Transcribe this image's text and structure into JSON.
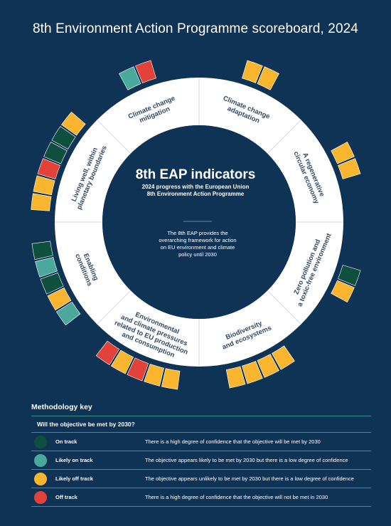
{
  "title": "8th Environment Action Programme scoreboard, 2024",
  "center": {
    "heading": "8th EAP indicators",
    "subheading_lines": [
      "2024 progress with the European Union",
      "8th Environment Action Programme"
    ],
    "description_lines": [
      "The 8th EAP provides the",
      "overarching framework for action",
      "on EU environment and climate",
      "policy until 2030"
    ]
  },
  "colors": {
    "on_track": "#0e4f3e",
    "likely_on_track": "#4aa89c",
    "likely_off_track": "#f9b52d",
    "off_track": "#e3423b",
    "background": "#0f3355",
    "ring": "#ffffff"
  },
  "segments": [
    {
      "key": "adaptation",
      "label_lines": [
        "Climate change",
        "adaptation"
      ],
      "statuses": [
        "likely_off_track",
        "likely_off_track"
      ]
    },
    {
      "key": "circular",
      "label_lines": [
        "A regenerative",
        "circular economy"
      ],
      "statuses": [
        "likely_off_track",
        "likely_off_track"
      ]
    },
    {
      "key": "pollution",
      "label_lines": [
        "Zero pollution and",
        "a toxic-free environment"
      ],
      "statuses": [
        "on_track",
        "likely_off_track"
      ]
    },
    {
      "key": "biodiversity",
      "label_lines": [
        "Biodiversity",
        "and ecosystems"
      ],
      "statuses": [
        "likely_off_track",
        "likely_off_track",
        "likely_off_track",
        "likely_off_track"
      ]
    },
    {
      "key": "pressures",
      "label_lines": [
        "Environmental",
        "and climate pressures",
        "related to EU production",
        "and consumption"
      ],
      "statuses": [
        "likely_off_track",
        "likely_off_track",
        "off_track",
        "likely_off_track",
        "off_track"
      ]
    },
    {
      "key": "enabling",
      "label_lines": [
        "Enabling",
        "conditions"
      ],
      "statuses": [
        "likely_on_track",
        "likely_off_track",
        "on_track",
        "likely_on_track",
        "on_track"
      ]
    },
    {
      "key": "living",
      "label_lines": [
        "Living well, within",
        "planetary boundaries"
      ],
      "statuses": [
        "likely_off_track",
        "likely_off_track",
        "off_track",
        "on_track",
        "on_track",
        "likely_off_track"
      ]
    },
    {
      "key": "mitigation",
      "label_lines": [
        "Climate change",
        "mitigation"
      ],
      "statuses": [
        "likely_on_track",
        "off_track"
      ]
    }
  ],
  "key": {
    "title": "Methodology key",
    "question": "Will the objective be met by 2030?",
    "rows": [
      {
        "status": "on_track",
        "label": "On track",
        "description": "There is a high degree of confidence that the objective will be met by 2030"
      },
      {
        "status": "likely_on_track",
        "label": "Likely on track",
        "description": "The objective appears likely to be met by 2030 but there is a low degree of confidence"
      },
      {
        "status": "likely_off_track",
        "label": "Likely off track",
        "description": "The objective appears unlikely to be met by 2030 but there is a low degree of confidence"
      },
      {
        "status": "off_track",
        "label": "Off track",
        "description": "There is a high degree of confidence that the objective will not be met in 2030"
      }
    ]
  }
}
